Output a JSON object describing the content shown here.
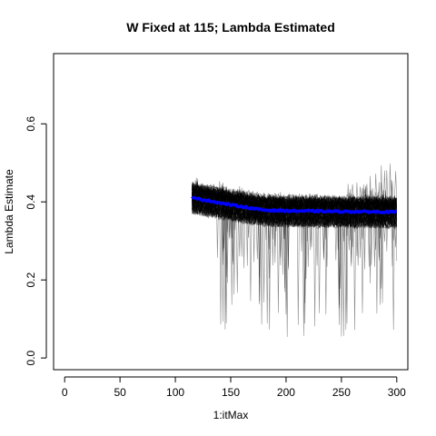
{
  "chart_data": {
    "type": "line",
    "title": "W Fixed at 115; Lambda Estimated",
    "xlabel": "1:itMax",
    "ylabel": "Lambda Estimate",
    "xlim": [
      -10,
      310
    ],
    "ylim": [
      -0.03,
      0.78
    ],
    "xticks": [
      0,
      50,
      100,
      150,
      200,
      250,
      300
    ],
    "yticks": [
      0.0,
      0.2,
      0.4,
      0.6
    ],
    "ytick_labels": [
      "0.0",
      "0.2",
      "0.4",
      "0.6"
    ],
    "x_start": 115,
    "x_end": 300,
    "trace_color": "#000000",
    "mean_color": "#0000ff",
    "grid": false,
    "series": [
      {
        "kind": "mean",
        "x": [
          115,
          130,
          145,
          160,
          170,
          180,
          200,
          230,
          260,
          300
        ],
        "values": [
          0.41,
          0.403,
          0.395,
          0.388,
          0.383,
          0.379,
          0.377,
          0.376,
          0.375,
          0.374
        ]
      },
      {
        "kind": "traces",
        "count": 100,
        "band_upper": [
          0.465,
          0.455,
          0.44,
          0.43,
          0.425,
          0.42,
          0.415,
          0.49
        ],
        "band_lower": [
          0.37,
          0.365,
          0.36,
          0.36,
          0.355,
          0.355,
          0.355,
          0.355
        ],
        "band_x": [
          115,
          140,
          160,
          180,
          200,
          230,
          260,
          300
        ],
        "dip_min": 0.05
      }
    ]
  }
}
